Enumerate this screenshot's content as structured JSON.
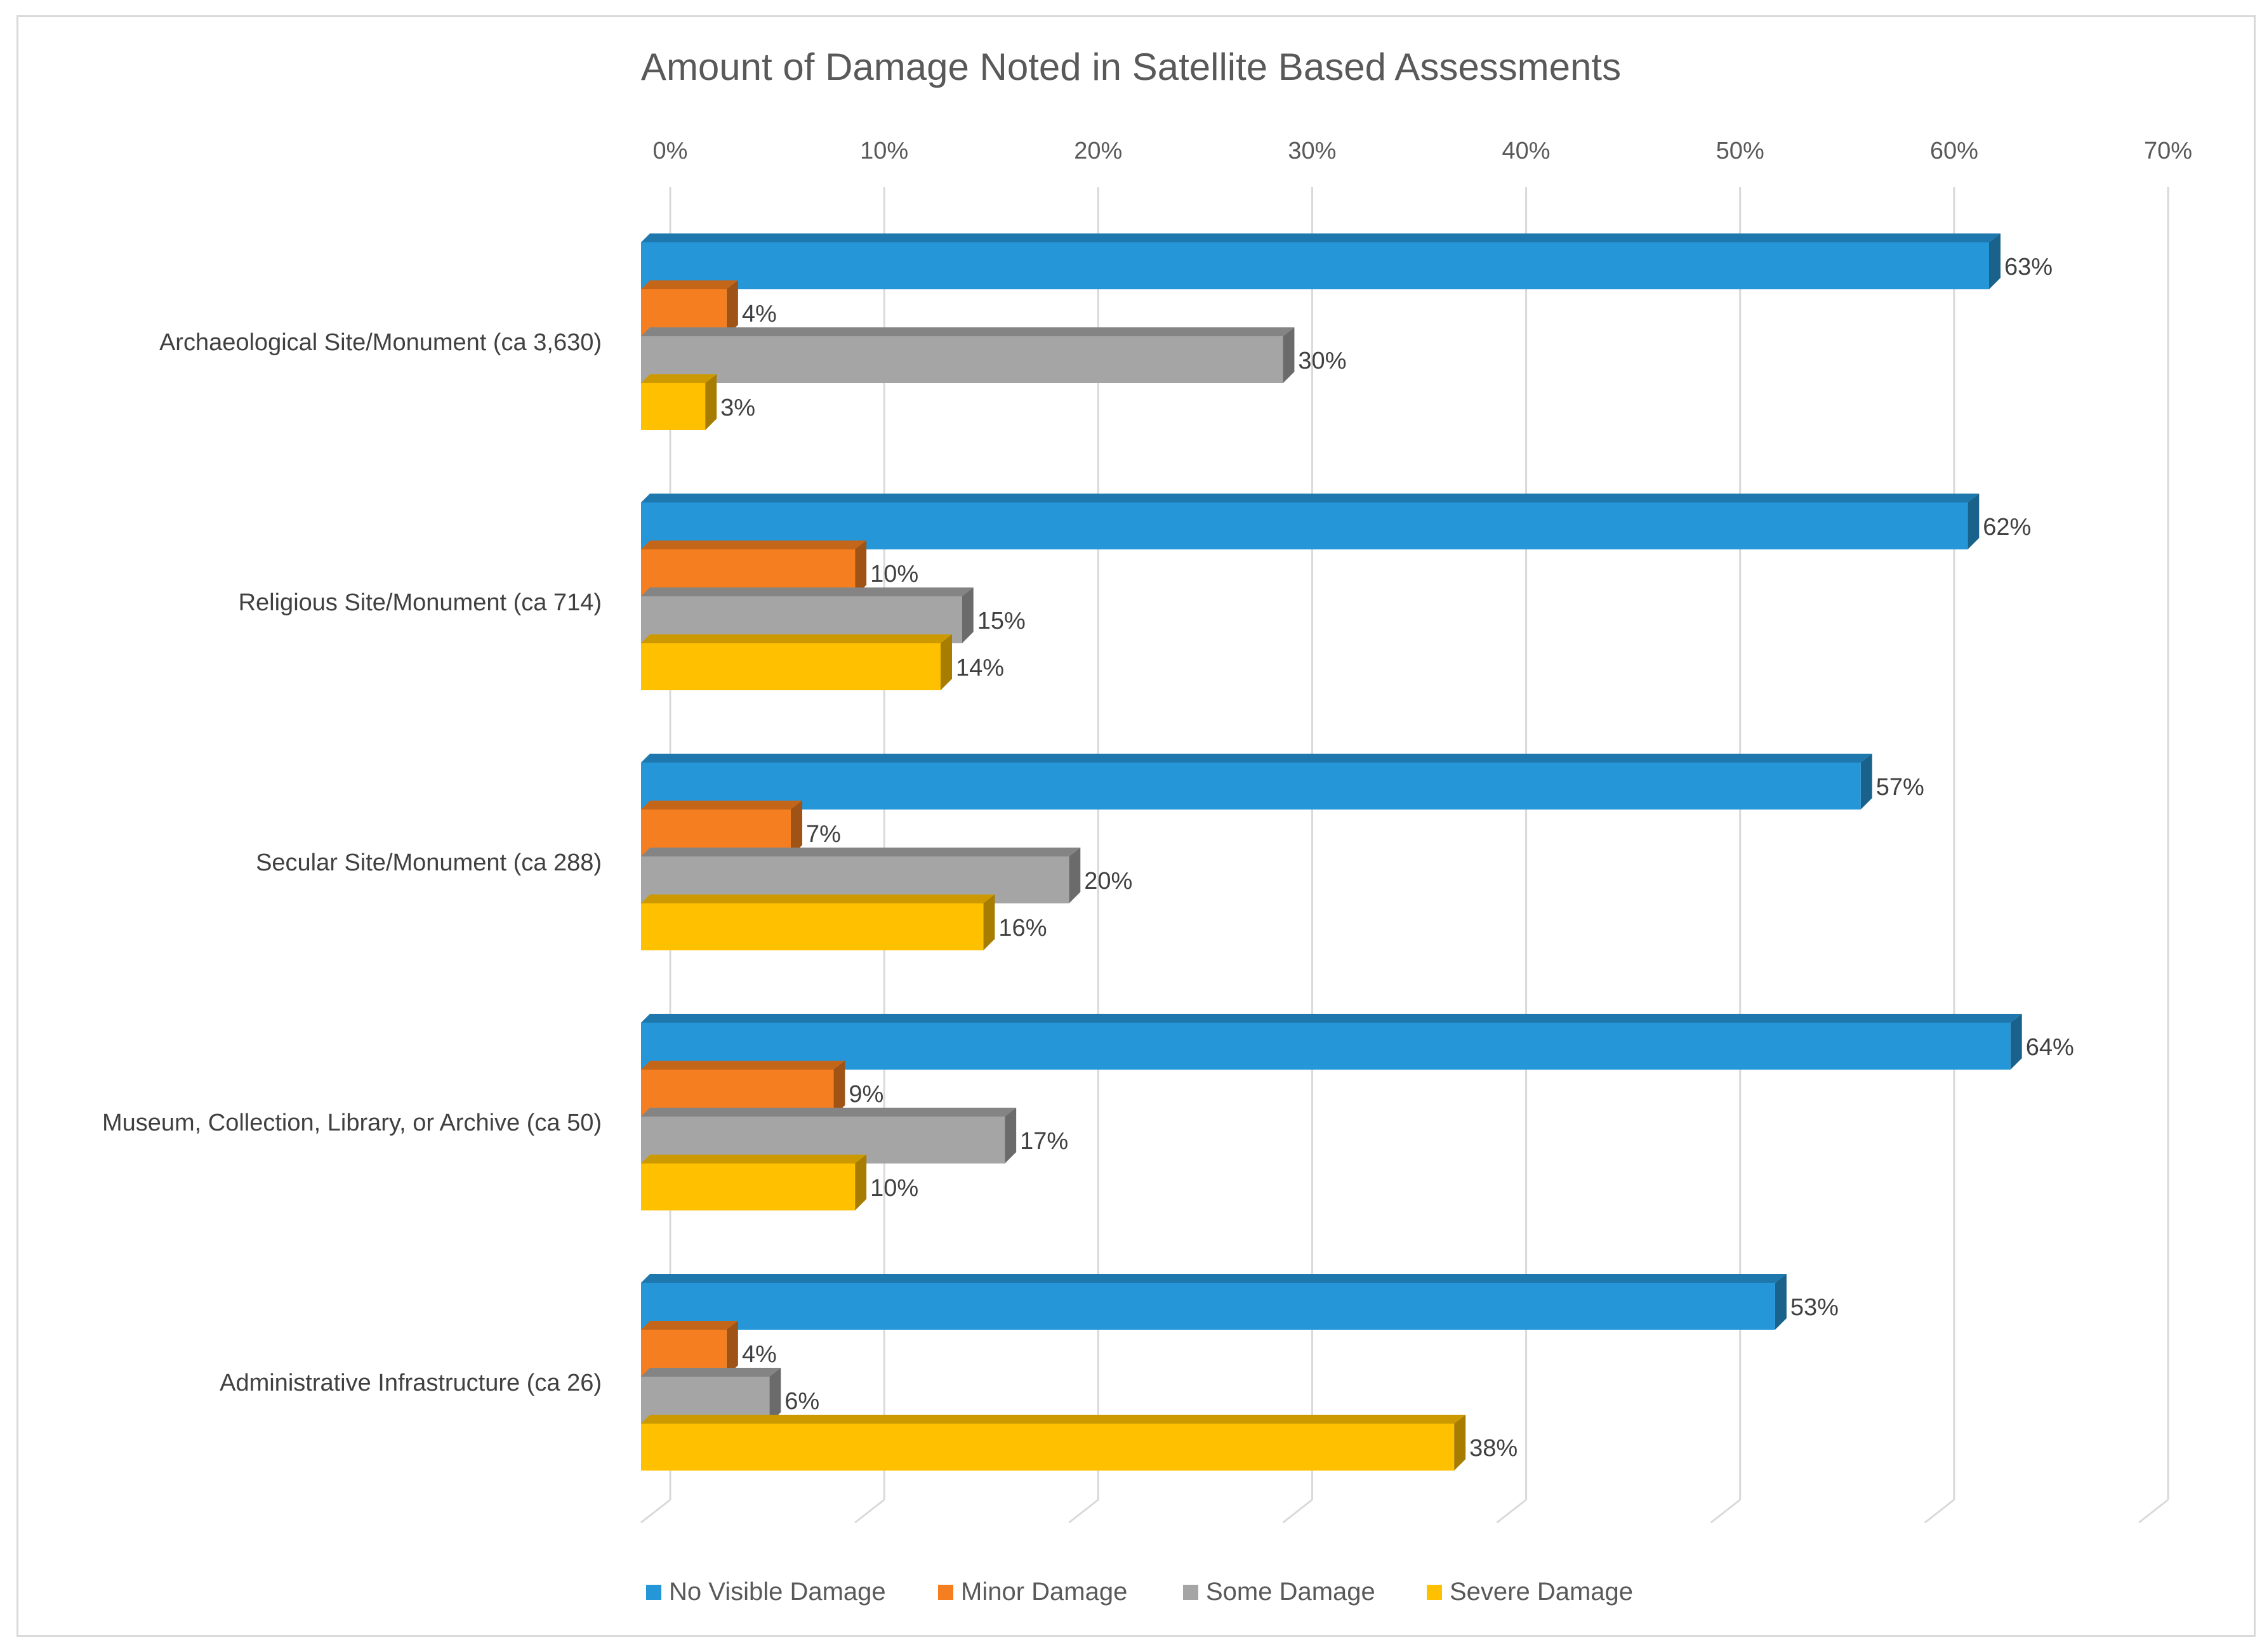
{
  "chart_data": {
    "type": "bar",
    "orientation": "horizontal",
    "title": "Amount of Damage Noted in Satellite Based Assessments",
    "xlabel": "",
    "ylabel": "",
    "xlim": [
      0,
      70
    ],
    "x_ticks": [
      "0%",
      "10%",
      "20%",
      "30%",
      "40%",
      "50%",
      "60%",
      "70%"
    ],
    "grid": true,
    "legend_position": "bottom",
    "categories": [
      "Archaeological Site/Monument (ca 3,630)",
      "Religious Site/Monument (ca 714)",
      "Secular Site/Monument (ca 288)",
      "Museum, Collection, Library, or Archive (ca 50)",
      "Administrative Infrastructure (ca 26)"
    ],
    "series": [
      {
        "name": "No Visible Damage",
        "color": "#2596d8",
        "values": [
          63,
          62,
          57,
          64,
          53
        ],
        "labels": [
          "63%",
          "62%",
          "57%",
          "64%",
          "53%"
        ]
      },
      {
        "name": "Minor Damage",
        "color": "#f57f20",
        "values": [
          4,
          10,
          7,
          9,
          4
        ],
        "labels": [
          "4%",
          "10%",
          "7%",
          "9%",
          "4%"
        ]
      },
      {
        "name": "Some Damage",
        "color": "#a5a5a5",
        "values": [
          30,
          15,
          20,
          17,
          6
        ],
        "labels": [
          "30%",
          "15%",
          "20%",
          "17%",
          "6%"
        ]
      },
      {
        "name": "Severe Damage",
        "color": "#ffc000",
        "values": [
          3,
          14,
          16,
          10,
          38
        ],
        "labels": [
          "3%",
          "14%",
          "16%",
          "10%",
          "38%"
        ]
      }
    ]
  }
}
